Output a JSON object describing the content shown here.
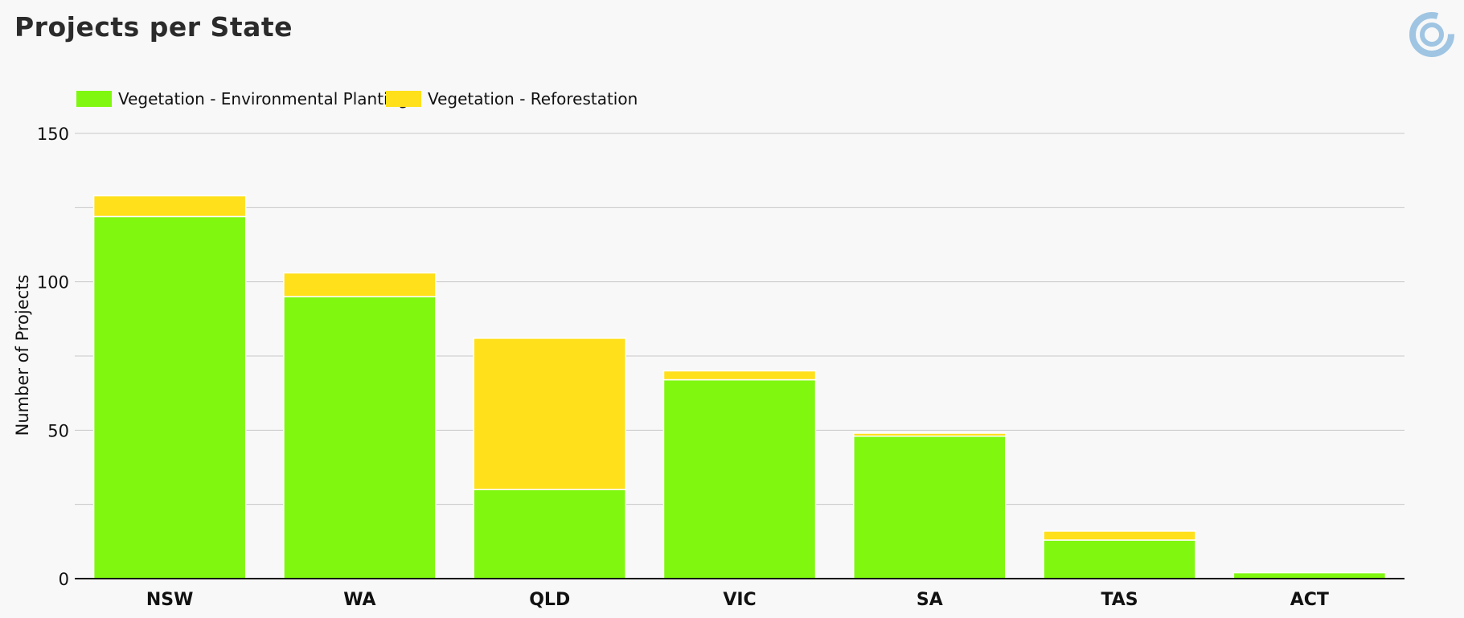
{
  "header": {
    "title": "Projects per State",
    "logo_icon": "target-ring-icon"
  },
  "colors": {
    "environmental_planting": "#80f70f",
    "reforestation": "#ffe01a",
    "gridline": "#c8c8c8",
    "axis": "#111111",
    "bar_separator": "#ffffff",
    "logo": "#9fc5e3"
  },
  "chart_data": {
    "type": "bar",
    "stacked": true,
    "title": "Projects per State",
    "xlabel": "",
    "ylabel": "Number of Projects",
    "ylim": [
      0,
      150
    ],
    "yticks": [
      0,
      50,
      100,
      150
    ],
    "grid": true,
    "legend_position": "top-left",
    "categories": [
      "NSW",
      "WA",
      "QLD",
      "VIC",
      "SA",
      "TAS",
      "ACT"
    ],
    "series": [
      {
        "name": "Vegetation - Environmental Planting",
        "color": "#80f70f",
        "values": [
          122,
          95,
          30,
          67,
          48,
          13,
          2
        ]
      },
      {
        "name": "Vegetation - Reforestation",
        "color": "#ffe01a",
        "values": [
          7,
          8,
          51,
          3,
          1,
          3,
          0
        ]
      }
    ]
  }
}
